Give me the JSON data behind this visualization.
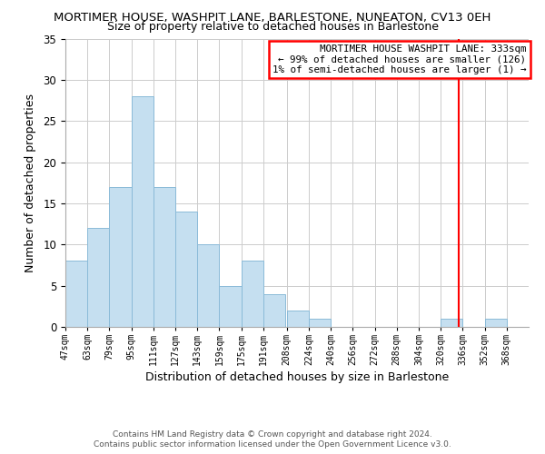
{
  "title": "MORTIMER HOUSE, WASHPIT LANE, BARLESTONE, NUNEATON, CV13 0EH",
  "subtitle": "Size of property relative to detached houses in Barlestone",
  "xlabel": "Distribution of detached houses by size in Barlestone",
  "ylabel": "Number of detached properties",
  "bar_color": "#c5dff0",
  "bar_edge_color": "#8bbbd8",
  "bin_labels": [
    "47sqm",
    "63sqm",
    "79sqm",
    "95sqm",
    "111sqm",
    "127sqm",
    "143sqm",
    "159sqm",
    "175sqm",
    "191sqm",
    "208sqm",
    "224sqm",
    "240sqm",
    "256sqm",
    "272sqm",
    "288sqm",
    "304sqm",
    "320sqm",
    "336sqm",
    "352sqm",
    "368sqm"
  ],
  "bin_edges": [
    47,
    63,
    79,
    95,
    111,
    127,
    143,
    159,
    175,
    191,
    208,
    224,
    240,
    256,
    272,
    288,
    304,
    320,
    336,
    352,
    368,
    384
  ],
  "bar_heights": [
    8,
    12,
    17,
    28,
    17,
    14,
    10,
    5,
    8,
    4,
    2,
    1,
    0,
    0,
    0,
    0,
    0,
    1,
    0,
    1,
    0
  ],
  "ylim": [
    0,
    35
  ],
  "yticks": [
    0,
    5,
    10,
    15,
    20,
    25,
    30,
    35
  ],
  "red_line_x": 333,
  "annotation_title": "MORTIMER HOUSE WASHPIT LANE: 333sqm",
  "annotation_line1": "← 99% of detached houses are smaller (126)",
  "annotation_line2": "1% of semi-detached houses are larger (1) →",
  "footer1": "Contains HM Land Registry data © Crown copyright and database right 2024.",
  "footer2": "Contains public sector information licensed under the Open Government Licence v3.0.",
  "background_color": "#ffffff",
  "grid_color": "#cccccc"
}
